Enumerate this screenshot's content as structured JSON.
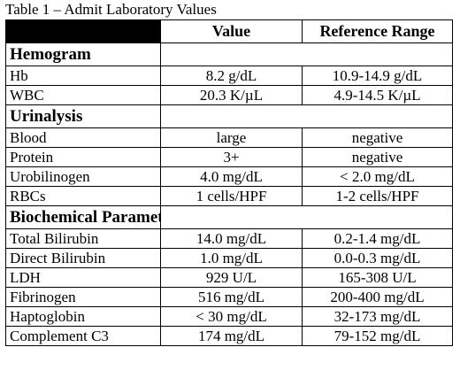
{
  "caption": "Table 1 – Admit Laboratory Values",
  "columns": {
    "value": "Value",
    "reference": "Reference Range"
  },
  "sections": [
    {
      "title": "Hemogram",
      "rows": [
        {
          "name": "Hb",
          "value": "8.2 g/dL",
          "ref": "10.9-14.9 g/dL"
        },
        {
          "name": "WBC",
          "value": "20.3 K/µL",
          "ref": "4.9-14.5 K/µL"
        }
      ]
    },
    {
      "title": "Urinalysis",
      "rows": [
        {
          "name": "Blood",
          "value": "large",
          "ref": "negative"
        },
        {
          "name": "Protein",
          "value": "3+",
          "ref": "negative"
        },
        {
          "name": "Urobilinogen",
          "value": "4.0 mg/dL",
          "ref": "< 2.0 mg/dL"
        },
        {
          "name": "RBCs",
          "value": "1 cells/HPF",
          "ref": "1-2 cells/HPF"
        }
      ]
    },
    {
      "title": "Biochemical Parameters",
      "rows": [
        {
          "name": "Total Bilirubin",
          "value": "14.0 mg/dL",
          "ref": "0.2-1.4 mg/dL"
        },
        {
          "name": "Direct Bilirubin",
          "value": "1.0 mg/dL",
          "ref": "0.0-0.3 mg/dL"
        },
        {
          "name": "LDH",
          "value": "929 U/L",
          "ref": "165-308 U/L"
        },
        {
          "name": "Fibrinogen",
          "value": "516 mg/dL",
          "ref": "200-400 mg/dL"
        },
        {
          "name": "Haptoglobin",
          "value": "< 30 mg/dL",
          "ref": "32-173 mg/dL"
        },
        {
          "name": "Complement C3",
          "value": "174 mg/dL",
          "ref": "79-152 mg/dL"
        }
      ]
    }
  ]
}
